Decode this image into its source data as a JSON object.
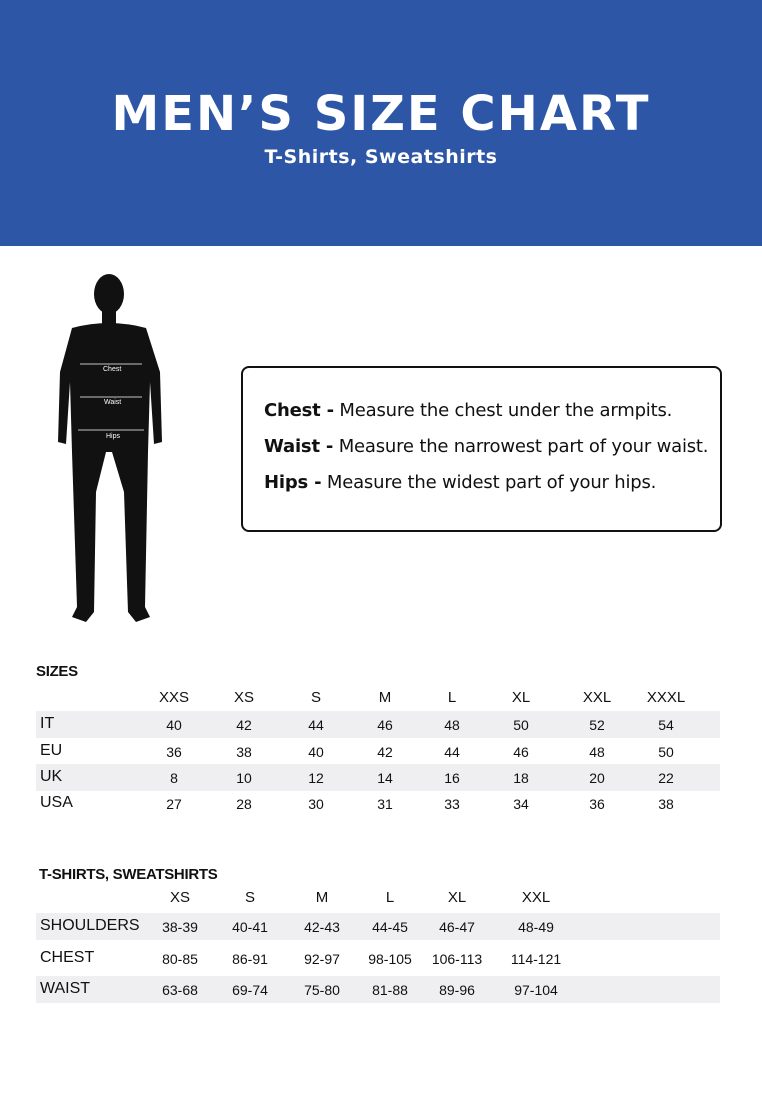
{
  "header": {
    "title": "MEN’S SIZE CHART",
    "subtitle": "T-Shirts, Sweatshirts",
    "bg_color": "#2e56a6"
  },
  "figure": {
    "labels": [
      "Chest",
      "Waist",
      "Hips"
    ]
  },
  "measurements": [
    {
      "term": "Chest -",
      "text": " Measure the chest under the armpits."
    },
    {
      "term": "Waist -",
      "text": " Measure the narrowest part of your waist."
    },
    {
      "term": "Hips -",
      "text": " Measure the widest part of your hips."
    }
  ],
  "sizes": {
    "title": "SIZES",
    "columns": [
      "XXS",
      "XS",
      "S",
      "M",
      "L",
      "XL",
      "XXL",
      "XXXL"
    ],
    "rows": [
      {
        "label": "IT",
        "values": [
          "40",
          "42",
          "44",
          "46",
          "48",
          "50",
          "52",
          "54"
        ]
      },
      {
        "label": "EU",
        "values": [
          "36",
          "38",
          "40",
          "42",
          "44",
          "46",
          "48",
          "50"
        ]
      },
      {
        "label": "UK",
        "values": [
          "8",
          "10",
          "12",
          "14",
          "16",
          "18",
          "20",
          "22"
        ]
      },
      {
        "label": "USA",
        "values": [
          "27",
          "28",
          "30",
          "31",
          "33",
          "34",
          "36",
          "38"
        ]
      }
    ]
  },
  "tshirts": {
    "title": "T-SHIRTS, SWEATSHIRTS",
    "columns": [
      "XS",
      "S",
      "M",
      "L",
      "XL",
      "XXL"
    ],
    "rows": [
      {
        "label": "SHOULDERS",
        "values": [
          "38-39",
          "40-41",
          "42-43",
          "44-45",
          "46-47",
          "48-49"
        ]
      },
      {
        "label": "CHEST",
        "values": [
          "80-85",
          "86-91",
          "92-97",
          "98-105",
          "106-113",
          "114-121"
        ]
      },
      {
        "label": "WAIST",
        "values": [
          "63-68",
          "69-74",
          "75-80",
          "81-88",
          "89-96",
          "97-104"
        ]
      }
    ]
  }
}
